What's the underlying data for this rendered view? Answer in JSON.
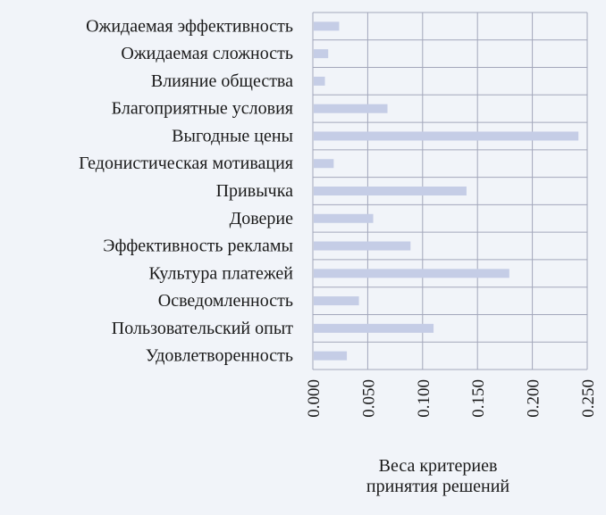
{
  "chart_data": {
    "type": "bar",
    "orientation": "horizontal",
    "categories": [
      "Ожидаемая эффективность",
      "Ожидаемая сложность",
      "Влияние общества",
      "Благоприятные условия",
      "Выгодные цены",
      "Гедонистическая мотивация",
      "Привычка",
      "Доверие",
      "Эффективность рекламы",
      "Культура платежей",
      "Осведомленность",
      "Пользовательский опыт",
      "Удовлетворенность"
    ],
    "values": [
      0.024,
      0.014,
      0.011,
      0.068,
      0.242,
      0.019,
      0.14,
      0.055,
      0.089,
      0.179,
      0.042,
      0.11,
      0.031
    ],
    "xlabel_lines": [
      "Веса критериев",
      "принятия решений"
    ],
    "xlim": [
      0,
      0.25
    ],
    "xticks": [
      "0.000",
      "0.050",
      "0.100",
      "0.150",
      "0.200",
      "0.250"
    ],
    "xtick_values": [
      0,
      0.05,
      0.1,
      0.15,
      0.2,
      0.25
    ],
    "grid": true,
    "bar_color": "#c5cde6",
    "grid_color": "#a3a7bb"
  }
}
